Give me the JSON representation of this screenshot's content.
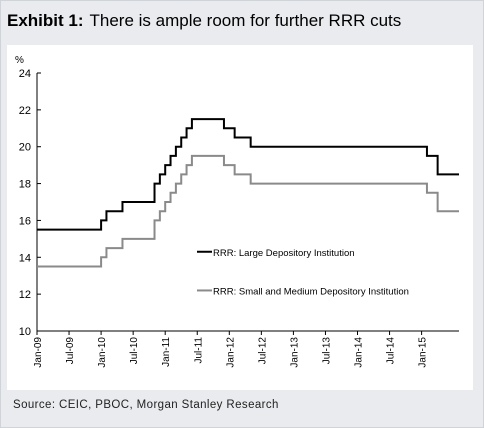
{
  "header": {
    "exhibit_label": "Exhibit 1:",
    "title": "There is ample room for further RRR cuts"
  },
  "source": "Source: CEIC, PBOC, Morgan Stanley Research",
  "chart_data": {
    "type": "line",
    "title": "There is ample room for further RRR cuts",
    "ylabel": "%",
    "xlabel": "",
    "ylim": [
      10,
      24
    ],
    "y_ticks": [
      10,
      12,
      14,
      16,
      18,
      20,
      22,
      24
    ],
    "xlim": [
      "2009-01",
      "2015-08"
    ],
    "x_ticks": [
      "Jan-09",
      "Jul-09",
      "Jan-10",
      "Jul-10",
      "Jan-11",
      "Jul-11",
      "Jan-12",
      "Jul-12",
      "Jan-13",
      "Jul-13",
      "Jan-14",
      "Jul-14",
      "Jan-15"
    ],
    "grid": false,
    "legend_position": "center-right",
    "step": true,
    "series": [
      {
        "name": "RRR: Large Depository Institution",
        "color": "#000000",
        "x": [
          "2009-01",
          "2010-01",
          "2010-02",
          "2010-05",
          "2010-11",
          "2010-12",
          "2011-01",
          "2011-02",
          "2011-03",
          "2011-04",
          "2011-05",
          "2011-06",
          "2011-12",
          "2012-02",
          "2012-05",
          "2015-02",
          "2015-04"
        ],
        "values": [
          15.5,
          16.0,
          16.5,
          17.0,
          18.0,
          18.5,
          19.0,
          19.5,
          20.0,
          20.5,
          21.0,
          21.5,
          21.0,
          20.5,
          20.0,
          19.5,
          18.5
        ]
      },
      {
        "name": "RRR: Small and Medium Depository Institution",
        "color": "#8a8a8a",
        "x": [
          "2009-01",
          "2010-01",
          "2010-02",
          "2010-05",
          "2010-11",
          "2010-12",
          "2011-01",
          "2011-02",
          "2011-03",
          "2011-04",
          "2011-05",
          "2011-06",
          "2011-12",
          "2012-02",
          "2012-05",
          "2015-02",
          "2015-04"
        ],
        "values": [
          13.5,
          14.0,
          14.5,
          15.0,
          16.0,
          16.5,
          17.0,
          17.5,
          18.0,
          18.5,
          19.0,
          19.5,
          19.0,
          18.5,
          18.0,
          17.5,
          16.5
        ]
      }
    ]
  }
}
